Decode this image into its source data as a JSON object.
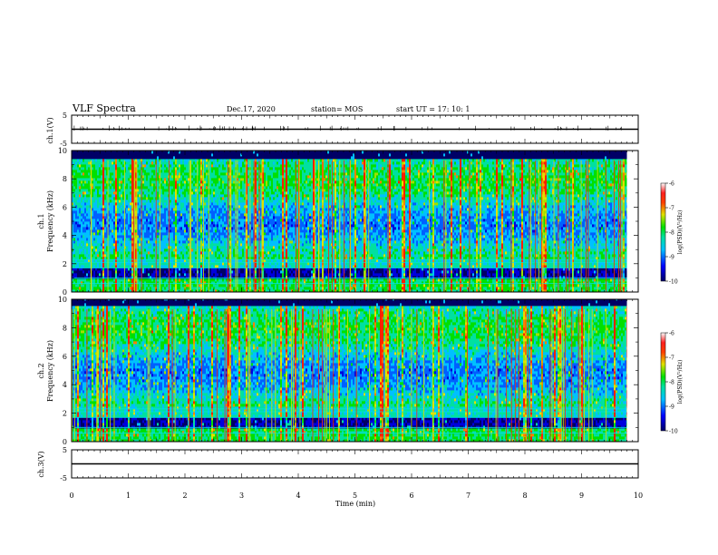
{
  "header": {
    "title": "VLF Spectra",
    "date": "Dec.17, 2020",
    "station": "station= MOS",
    "start": "start  UT =   17: 10: 1"
  },
  "chart_data": [
    {
      "type": "line",
      "name": "ch1-waveform",
      "ylabel": "ch.1(V)",
      "ylim": [
        -5,
        5
      ],
      "yticks": [
        "5",
        "-5"
      ],
      "xlim": [
        0,
        10
      ],
      "baseline": 0
    },
    {
      "type": "heatmap",
      "name": "ch1-spectrogram",
      "ylabel_line1": "ch.1",
      "ylabel_line2": "Frequency (kHz)",
      "ylim": [
        0,
        10
      ],
      "yticks": [
        "0",
        "2",
        "4",
        "6",
        "8",
        "10"
      ],
      "xlim": [
        0,
        10
      ],
      "data_end_min": 9.8,
      "colorbar": {
        "label": "log(PSD)(V²/Hz)",
        "range": [
          -10,
          -6
        ],
        "ticks": [
          "-6",
          "-7",
          "-8",
          "-9",
          "-10"
        ]
      }
    },
    {
      "type": "heatmap",
      "name": "ch2-spectrogram",
      "ylabel_line1": "ch.2",
      "ylabel_line2": "Frequency (kHz)",
      "ylim": [
        0,
        10
      ],
      "yticks": [
        "0",
        "2",
        "4",
        "6",
        "8",
        "10"
      ],
      "xlim": [
        0,
        10
      ],
      "data_end_min": 9.8,
      "colorbar": {
        "label": "log(PSD)(V²/Hz)",
        "range": [
          -10,
          -6
        ],
        "ticks": [
          "-6",
          "-7",
          "-8",
          "-9",
          "-10"
        ]
      }
    },
    {
      "type": "line",
      "name": "ch3-waveform",
      "ylabel": "ch.3(V)",
      "ylim": [
        -5,
        5
      ],
      "yticks": [
        "5",
        "-5"
      ],
      "xlim": [
        0,
        10
      ],
      "baseline": 0,
      "xlabel": "Time  (min)",
      "xticks": [
        "0",
        "1",
        "2",
        "3",
        "4",
        "5",
        "6",
        "7",
        "8",
        "9",
        "10"
      ]
    }
  ],
  "colors": {
    "colormap": [
      "#000000",
      "#0000c8",
      "#0080ff",
      "#00e0e0",
      "#00e000",
      "#e0e000",
      "#ff8000",
      "#ff0000",
      "#ffffff"
    ]
  }
}
